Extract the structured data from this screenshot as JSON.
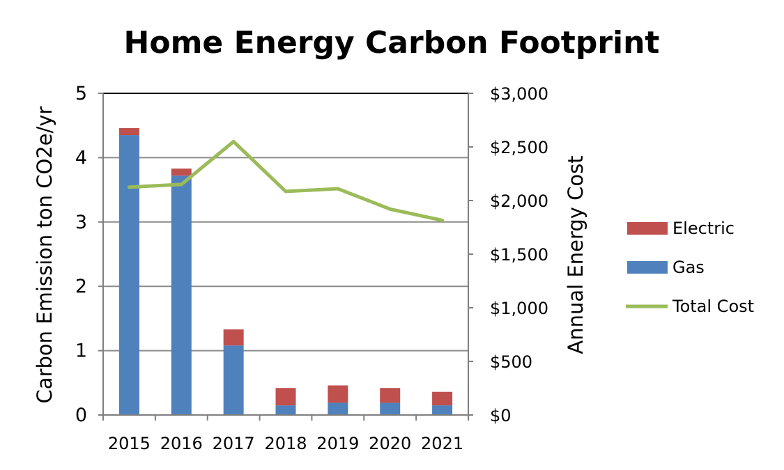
{
  "chart_data": {
    "type": "bar",
    "title": "Home Energy Carbon Footprint",
    "categories": [
      "2015",
      "2016",
      "2017",
      "2018",
      "2019",
      "2020",
      "2021"
    ],
    "series": [
      {
        "name": "Gas",
        "kind": "stacked-bar",
        "axis": "left",
        "color": "#4F81BD",
        "values": [
          4.35,
          3.72,
          1.08,
          0.15,
          0.19,
          0.19,
          0.15
        ]
      },
      {
        "name": "Electric",
        "kind": "stacked-bar",
        "axis": "left",
        "color": "#C0504D",
        "values": [
          0.11,
          0.11,
          0.25,
          0.27,
          0.27,
          0.23,
          0.21
        ]
      },
      {
        "name": "Total Cost",
        "kind": "line",
        "axis": "right",
        "color": "#9BBB59",
        "values": [
          2125,
          2150,
          2550,
          2085,
          2110,
          1920,
          1815
        ]
      }
    ],
    "y_left": {
      "label": "Carbon Emission ton  CO2e/yr",
      "min": 0,
      "max": 5,
      "ticks": [
        "0",
        "1",
        "2",
        "3",
        "4",
        "5"
      ]
    },
    "y_right": {
      "label": "Annual Energy Cost",
      "min": 0,
      "max": 3000,
      "ticks": [
        "$0",
        "$500",
        "$1,000",
        "$1,500",
        "$2,000",
        "$2,500",
        "$3,000"
      ]
    },
    "legend": {
      "position": "right",
      "order": [
        "Electric",
        "Gas",
        "Total Cost"
      ]
    },
    "grid": true
  }
}
